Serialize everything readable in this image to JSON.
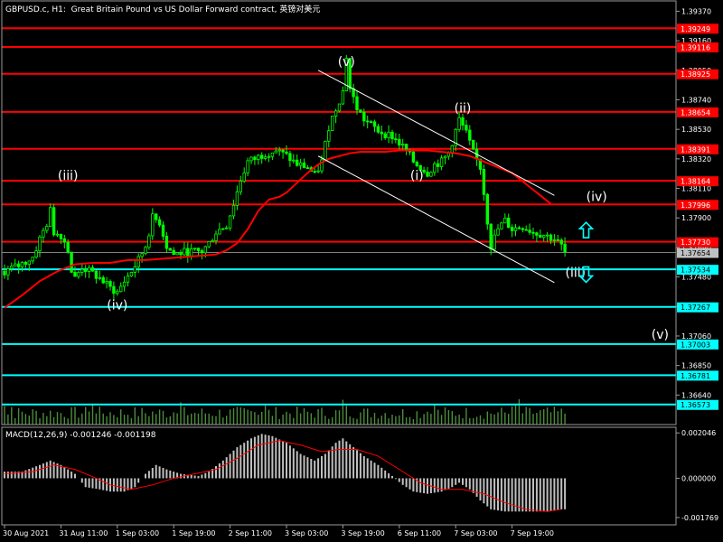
{
  "header": {
    "symbol": "GBPUSD.c",
    "timeframe": "H1",
    "description": "Great Britain Pound vs US Dollar Forward contract, 英镑对美元"
  },
  "macd": {
    "label": "MACD(12,26,9) -0.001246 -0.001198",
    "axis_ticks": [
      "0.002046",
      "0.000000",
      "-0.001769"
    ]
  },
  "colors": {
    "background": "#000000",
    "candle": "#00ff00",
    "ma_line": "#ff0000",
    "resistance_line": "#ff0000",
    "support_line": "#00ffff",
    "channel_line": "#ffffff",
    "volume": "#4c8c3c",
    "macd_hist": "#c0c0c0",
    "macd_signal": "#ff0000",
    "arrow": "#00ffff"
  },
  "chart_data": {
    "type": "candlestick",
    "ylim": [
      1.3643,
      1.3945
    ],
    "price_axis_ticks": [
      "1.39370",
      "1.39160",
      "1.38950",
      "1.38740",
      "1.38530",
      "1.38320",
      "1.38110",
      "1.37900",
      "1.37690",
      "1.37480",
      "1.37270",
      "1.37060",
      "1.36850",
      "1.36640"
    ],
    "x_axis_ticks": [
      "30 Aug 2021",
      "31 Aug 11:00",
      "1 Sep 03:00",
      "1 Sep 19:00",
      "2 Sep 11:00",
      "3 Sep 03:00",
      "3 Sep 19:00",
      "6 Sep 11:00",
      "7 Sep 03:00",
      "7 Sep 19:00"
    ],
    "current_price": "1.37654",
    "resistance_levels": [
      "1.39249",
      "1.39116",
      "1.38925",
      "1.38654",
      "1.38391",
      "1.38164",
      "1.37996",
      "1.37730"
    ],
    "support_levels": [
      "1.37534",
      "1.37267",
      "1.37003",
      "1.36781",
      "1.36573"
    ],
    "wave_labels": [
      {
        "text": "(iii)",
        "price": 1.3817,
        "bar": 18
      },
      {
        "text": "(iv)",
        "price": 1.3725,
        "bar": 32
      },
      {
        "text": "(v)",
        "price": 1.3898,
        "bar": 97
      },
      {
        "text": "(ii)",
        "price": 1.3865,
        "bar": 130
      },
      {
        "text": "(i)",
        "price": 1.3817,
        "bar": 117
      },
      {
        "text": "(iv)",
        "price": 1.3802,
        "bar": 168
      },
      {
        "text": "(iii)",
        "price": 1.3748,
        "bar": 162
      },
      {
        "text": "(v)",
        "price": 1.3704,
        "bar": 186
      }
    ],
    "close_path": [
      [
        0,
        1.3752
      ],
      [
        4,
        1.3756
      ],
      [
        8,
        1.3762
      ],
      [
        10,
        1.3775
      ],
      [
        12,
        1.3786
      ],
      [
        13,
        1.3795
      ],
      [
        14,
        1.378
      ],
      [
        16,
        1.3778
      ],
      [
        18,
        1.3768
      ],
      [
        19,
        1.3752
      ],
      [
        20,
        1.3747
      ],
      [
        22,
        1.3755
      ],
      [
        24,
        1.3752
      ],
      [
        27,
        1.3747
      ],
      [
        30,
        1.374
      ],
      [
        32,
        1.3737
      ],
      [
        34,
        1.3745
      ],
      [
        36,
        1.3752
      ],
      [
        38,
        1.376
      ],
      [
        40,
        1.377
      ],
      [
        42,
        1.379
      ],
      [
        44,
        1.3787
      ],
      [
        46,
        1.377
      ],
      [
        48,
        1.3764
      ],
      [
        52,
        1.3766
      ],
      [
        56,
        1.3766
      ],
      [
        58,
        1.3772
      ],
      [
        60,
        1.378
      ],
      [
        63,
        1.3785
      ],
      [
        65,
        1.38
      ],
      [
        67,
        1.3817
      ],
      [
        69,
        1.383
      ],
      [
        71,
        1.3832
      ],
      [
        74,
        1.3836
      ],
      [
        77,
        1.3838
      ],
      [
        80,
        1.3834
      ],
      [
        83,
        1.3828
      ],
      [
        86,
        1.3826
      ],
      [
        88,
        1.382
      ],
      [
        90,
        1.383
      ],
      [
        92,
        1.3855
      ],
      [
        94,
        1.3868
      ],
      [
        96,
        1.388
      ],
      [
        97,
        1.3905
      ],
      [
        98,
        1.3882
      ],
      [
        100,
        1.3868
      ],
      [
        102,
        1.386
      ],
      [
        104,
        1.3856
      ],
      [
        106,
        1.3852
      ],
      [
        108,
        1.385
      ],
      [
        110,
        1.3848
      ],
      [
        112,
        1.3843
      ],
      [
        114,
        1.3838
      ],
      [
        116,
        1.383
      ],
      [
        118,
        1.3826
      ],
      [
        120,
        1.3822
      ],
      [
        122,
        1.3828
      ],
      [
        124,
        1.383
      ],
      [
        126,
        1.3836
      ],
      [
        128,
        1.3852
      ],
      [
        129,
        1.386
      ],
      [
        131,
        1.385
      ],
      [
        133,
        1.3836
      ],
      [
        135,
        1.3826
      ],
      [
        136,
        1.3808
      ],
      [
        137,
        1.3788
      ],
      [
        138,
        1.377
      ],
      [
        140,
        1.3782
      ],
      [
        142,
        1.3788
      ],
      [
        144,
        1.3782
      ],
      [
        147,
        1.3784
      ],
      [
        150,
        1.378
      ],
      [
        153,
        1.3778
      ],
      [
        156,
        1.3775
      ],
      [
        158,
        1.377
      ],
      [
        159,
        1.3765
      ]
    ],
    "ma_path": [
      [
        0,
        1.3726
      ],
      [
        5,
        1.3735
      ],
      [
        10,
        1.3745
      ],
      [
        15,
        1.3752
      ],
      [
        20,
        1.3757
      ],
      [
        25,
        1.3758
      ],
      [
        30,
        1.3758
      ],
      [
        35,
        1.376
      ],
      [
        40,
        1.376
      ],
      [
        45,
        1.3761
      ],
      [
        50,
        1.3762
      ],
      [
        55,
        1.3763
      ],
      [
        60,
        1.3764
      ],
      [
        63,
        1.3767
      ],
      [
        66,
        1.3772
      ],
      [
        69,
        1.3782
      ],
      [
        72,
        1.3795
      ],
      [
        75,
        1.3803
      ],
      [
        78,
        1.3805
      ],
      [
        80,
        1.3808
      ],
      [
        83,
        1.3815
      ],
      [
        86,
        1.3822
      ],
      [
        89,
        1.3828
      ],
      [
        92,
        1.3832
      ],
      [
        95,
        1.3834
      ],
      [
        98,
        1.3836
      ],
      [
        101,
        1.3837
      ],
      [
        104,
        1.3837
      ],
      [
        108,
        1.3837
      ],
      [
        112,
        1.3838
      ],
      [
        116,
        1.3838
      ],
      [
        120,
        1.3838
      ],
      [
        124,
        1.3837
      ],
      [
        128,
        1.3836
      ],
      [
        132,
        1.3834
      ],
      [
        136,
        1.383
      ],
      [
        140,
        1.3826
      ],
      [
        144,
        1.3822
      ],
      [
        148,
        1.3814
      ],
      [
        152,
        1.3806
      ],
      [
        155,
        1.38
      ]
    ],
    "channel_lines": [
      [
        [
          89,
          1.3895
        ],
        [
          156,
          1.3806
        ]
      ],
      [
        [
          89,
          1.3834
        ],
        [
          156,
          1.3744
        ]
      ]
    ],
    "macd_histogram_path": [
      [
        0,
        0.0003
      ],
      [
        5,
        0.0003
      ],
      [
        10,
        0.0006
      ],
      [
        13,
        0.0008
      ],
      [
        16,
        0.0006
      ],
      [
        20,
        0.0002
      ],
      [
        23,
        -0.0004
      ],
      [
        27,
        -0.0005
      ],
      [
        30,
        -0.0006
      ],
      [
        34,
        -0.0006
      ],
      [
        37,
        -0.0004
      ],
      [
        40,
        0.0002
      ],
      [
        43,
        0.0006
      ],
      [
        46,
        0.0004
      ],
      [
        50,
        0.0002
      ],
      [
        55,
        0.0001
      ],
      [
        58,
        0.0003
      ],
      [
        62,
        0.0008
      ],
      [
        66,
        0.0014
      ],
      [
        70,
        0.0018
      ],
      [
        73,
        0.002
      ],
      [
        76,
        0.0019
      ],
      [
        80,
        0.0016
      ],
      [
        84,
        0.0011
      ],
      [
        88,
        0.0008
      ],
      [
        91,
        0.0011
      ],
      [
        94,
        0.0016
      ],
      [
        96,
        0.0018
      ],
      [
        99,
        0.0014
      ],
      [
        102,
        0.001
      ],
      [
        106,
        0.0006
      ],
      [
        110,
        0.0001
      ],
      [
        113,
        -0.0003
      ],
      [
        116,
        -0.0006
      ],
      [
        120,
        -0.0007
      ],
      [
        124,
        -0.0006
      ],
      [
        127,
        -0.0004
      ],
      [
        129,
        -0.0002
      ],
      [
        132,
        -0.0005
      ],
      [
        135,
        -0.001
      ],
      [
        138,
        -0.0014
      ],
      [
        142,
        -0.0015
      ],
      [
        146,
        -0.0015
      ],
      [
        150,
        -0.0015
      ],
      [
        154,
        -0.0015
      ],
      [
        158,
        -0.0014
      ]
    ],
    "macd_signal_path": [
      [
        0,
        0.0002
      ],
      [
        8,
        0.0003
      ],
      [
        14,
        0.0006
      ],
      [
        20,
        0.0004
      ],
      [
        26,
        0.0
      ],
      [
        30,
        -0.0003
      ],
      [
        36,
        -0.0005
      ],
      [
        42,
        -0.0003
      ],
      [
        48,
        0.0
      ],
      [
        54,
        0.0002
      ],
      [
        60,
        0.0004
      ],
      [
        66,
        0.0009
      ],
      [
        72,
        0.0015
      ],
      [
        78,
        0.0017
      ],
      [
        84,
        0.0015
      ],
      [
        90,
        0.0012
      ],
      [
        95,
        0.0013
      ],
      [
        100,
        0.0013
      ],
      [
        106,
        0.001
      ],
      [
        112,
        0.0004
      ],
      [
        118,
        -0.0002
      ],
      [
        124,
        -0.0005
      ],
      [
        130,
        -0.0005
      ],
      [
        136,
        -0.0007
      ],
      [
        142,
        -0.0011
      ],
      [
        148,
        -0.0014
      ],
      [
        154,
        -0.0015
      ],
      [
        158,
        -0.0014
      ]
    ]
  }
}
